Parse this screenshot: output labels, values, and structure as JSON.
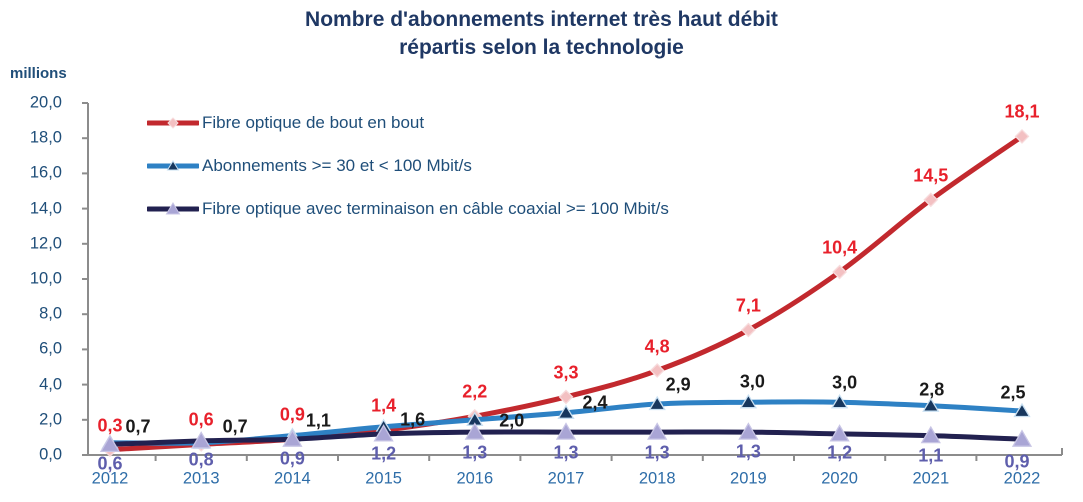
{
  "title": {
    "line1": "Nombre d'abonnements internet très haut débit",
    "line2": "répartis selon la technologie"
  },
  "y_axis": {
    "unit_label": "millions",
    "tick_labels": [
      "0,0",
      "2,0",
      "4,0",
      "6,0",
      "8,0",
      "10,0",
      "12,0",
      "14,0",
      "16,0",
      "18,0",
      "20,0"
    ],
    "min": 0,
    "max": 20,
    "step": 2
  },
  "chart_data": {
    "type": "line",
    "title": "Nombre d'abonnements internet très haut débit répartis selon la technologie",
    "categories": [
      "2012",
      "2013",
      "2014",
      "2015",
      "2016",
      "2017",
      "2018",
      "2019",
      "2020",
      "2021",
      "2022"
    ],
    "series": [
      {
        "name": "Fibre optique de bout en bout",
        "values": [
          0.3,
          0.6,
          0.9,
          1.4,
          2.2,
          3.3,
          4.8,
          7.1,
          10.4,
          14.5,
          18.1
        ],
        "labels": [
          "0,3",
          "0,6",
          "0,9",
          "1,4",
          "2,2",
          "3,3",
          "4,8",
          "7,1",
          "10,4",
          "14,5",
          "18,1"
        ],
        "line_color": "#C2292E",
        "marker": "diamond",
        "marker_fill": "#F3C0C2",
        "marker_stroke": "#F7DBDC",
        "label_color": "#E8202B"
      },
      {
        "name": "Abonnements >= 30 et < 100 Mbit/s",
        "values": [
          0.7,
          0.7,
          1.1,
          1.6,
          2.0,
          2.4,
          2.9,
          3.0,
          3.0,
          2.8,
          2.5
        ],
        "labels": [
          "0,7",
          "0,7",
          "1,1",
          "1,6",
          "2,0",
          "2,4",
          "2,9",
          "3,0",
          "3,0",
          "2,8",
          "2,5"
        ],
        "line_color": "#2E81C4",
        "marker": "triangle",
        "marker_fill": "#17375E",
        "marker_stroke": "#C9E0F2",
        "label_color": "#1A1A1A"
      },
      {
        "name": "Fibre optique avec terminaison en câble coaxial >= 100 Mbit/s",
        "values": [
          0.6,
          0.8,
          0.9,
          1.2,
          1.3,
          1.3,
          1.3,
          1.3,
          1.2,
          1.1,
          0.9
        ],
        "labels": [
          "0,6",
          "0,8",
          "0,9",
          "1,2",
          "1,3",
          "1,3",
          "1,3",
          "1,3",
          "1,2",
          "1,1",
          "0,9"
        ],
        "line_color": "#222150",
        "marker": "triangle",
        "marker_fill": "#A9A5D5",
        "marker_stroke": "#C8C5E5",
        "label_color": "#5E5EAC"
      }
    ],
    "ylim": [
      0,
      20
    ],
    "grid": false,
    "legend_position": "top-left-inside",
    "axis_color": "#8C8C8C",
    "text_colors": {
      "title": "#1F3864",
      "legend": "#1F4E79",
      "y_ticks": "#1F4E79",
      "x_ticks": "#2E6DA8"
    }
  }
}
